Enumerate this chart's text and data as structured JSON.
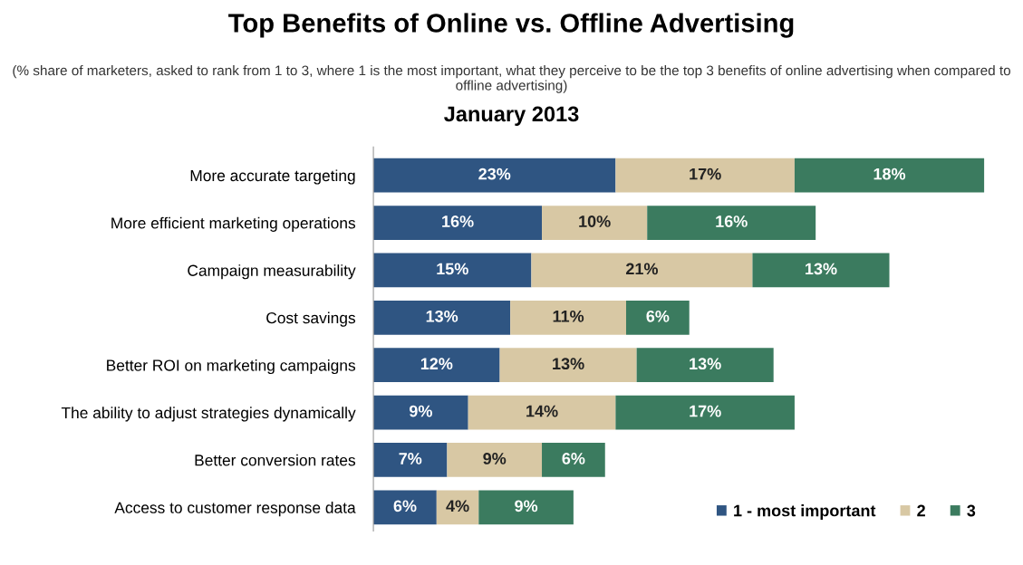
{
  "chart_data": {
    "type": "bar",
    "orientation": "horizontal",
    "stacked": true,
    "legend": "bottom right",
    "grid": false,
    "title": "Top Benefits of Online vs. Offline Advertising",
    "subtitle": "(% share of marketers, asked to rank from 1 to 3, where 1 is the most important, what they perceive to be the top 3 benefits of online advertising when compared to offline advertising)",
    "annotations": [
      "January 2013"
    ],
    "categories": [
      "More accurate targeting",
      "More efficient marketing operations",
      "Campaign measurability",
      "Cost savings",
      "Better ROI on marketing campaigns",
      "The ability to adjust strategies dynamically",
      "Better conversion rates",
      "Access to customer response data"
    ],
    "series": [
      {
        "name": "1 - most important",
        "color": "#2f5582",
        "values": [
          23,
          16,
          15,
          13,
          12,
          9,
          7,
          6
        ],
        "value_labels": [
          "23%",
          "16%",
          "15%",
          "13%",
          "12%",
          "9%",
          "7%",
          "6%"
        ]
      },
      {
        "name": "2",
        "color": "#d8c8a4",
        "values": [
          17,
          10,
          21,
          11,
          13,
          14,
          9,
          4
        ],
        "value_labels": [
          "17%",
          "10%",
          "21%",
          "11%",
          "13%",
          "14%",
          "9%",
          "4%"
        ]
      },
      {
        "name": "3",
        "color": "#3b7b5f",
        "values": [
          18,
          16,
          13,
          6,
          13,
          17,
          6,
          9
        ],
        "value_labels": [
          "18%",
          "16%",
          "13%",
          "6%",
          "13%",
          "17%",
          "6%",
          "9%"
        ]
      }
    ]
  }
}
